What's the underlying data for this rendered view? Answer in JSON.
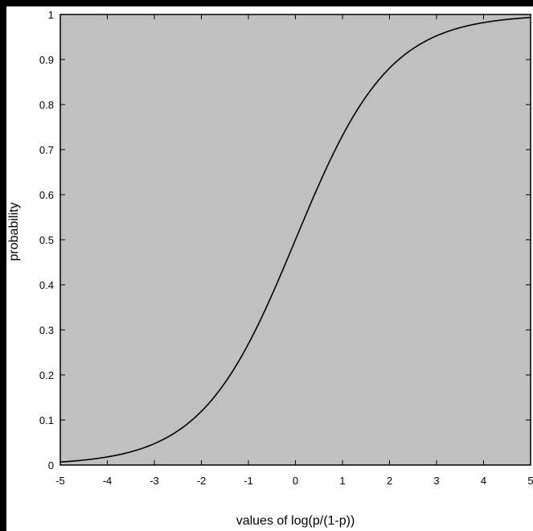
{
  "chart_data": {
    "type": "line",
    "title": "",
    "xlabel": "values of log(p/(1-p))",
    "ylabel": "probability",
    "xlim": [
      -5,
      5
    ],
    "ylim": [
      0,
      1
    ],
    "grid": false,
    "x_ticks": [
      -5,
      -4,
      -3,
      -2,
      -1,
      0,
      1,
      2,
      3,
      4,
      5
    ],
    "x_tick_labels": [
      "-5",
      "-4",
      "-3",
      "-2",
      "-1",
      "0",
      "1",
      "2",
      "3",
      "4",
      "5"
    ],
    "y_ticks": [
      0,
      0.1,
      0.2,
      0.3,
      0.4,
      0.5,
      0.6,
      0.7,
      0.8,
      0.9,
      1
    ],
    "y_tick_labels": [
      "0",
      "0.1",
      "0.2",
      "0.3",
      "0.4",
      "0.5",
      "0.6",
      "0.7",
      "0.8",
      "0.9",
      "1"
    ],
    "series": [
      {
        "x": [
          -5,
          -4.5,
          -4,
          -3.5,
          -3,
          -2.5,
          -2,
          -1.5,
          -1,
          -0.5,
          0,
          0.5,
          1,
          1.5,
          2,
          2.5,
          3,
          3.5,
          4,
          4.5,
          5
        ],
        "values": [
          0.0067,
          0.011,
          0.018,
          0.029,
          0.047,
          0.076,
          0.119,
          0.182,
          0.269,
          0.378,
          0.5,
          0.622,
          0.731,
          0.818,
          0.881,
          0.924,
          0.953,
          0.971,
          0.982,
          0.989,
          0.993
        ]
      }
    ]
  },
  "colors": {
    "page_background": "#000000",
    "figure_background": "#ffffff",
    "plot_background": "#c0c0c0",
    "line": "#000000"
  }
}
